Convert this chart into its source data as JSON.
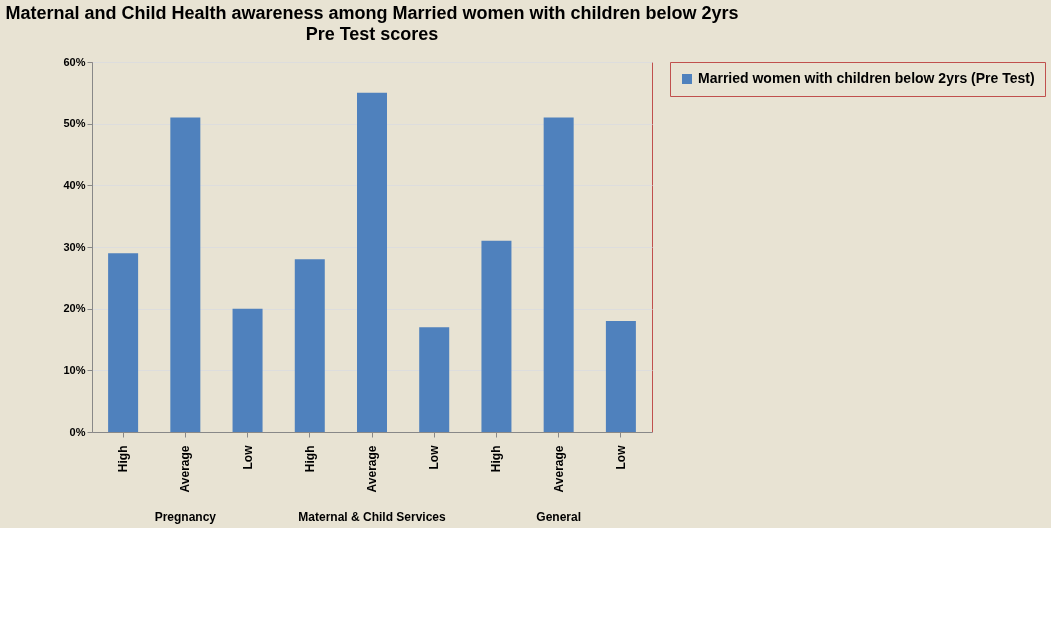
{
  "chart_data": {
    "type": "bar",
    "title": "Maternal and Child Health awareness among Married women with children below 2yrs",
    "subtitle": "Pre Test  scores",
    "categories": [
      "High",
      "Average",
      "Low",
      "High",
      "Average",
      "Low",
      "High",
      "Average",
      "Low"
    ],
    "series": [
      {
        "name": "Married women with children below 2yrs (Pre Test)",
        "color": "#4f81bd",
        "values": [
          29,
          51,
          20,
          28,
          55,
          17,
          31,
          51,
          18
        ]
      }
    ],
    "annotations": [
      "Pregnancy",
      "Maternal & Child Services",
      "General"
    ],
    "ylim": [
      0,
      60
    ],
    "yticks": [
      {
        "value": 0,
        "label": "0%"
      },
      {
        "value": 10,
        "label": "10%"
      },
      {
        "value": 20,
        "label": "20%"
      },
      {
        "value": 30,
        "label": "30%"
      },
      {
        "value": 40,
        "label": "40%"
      },
      {
        "value": 50,
        "label": "50%"
      },
      {
        "value": 60,
        "label": "60%"
      }
    ],
    "grid": "y",
    "legend": "right"
  }
}
